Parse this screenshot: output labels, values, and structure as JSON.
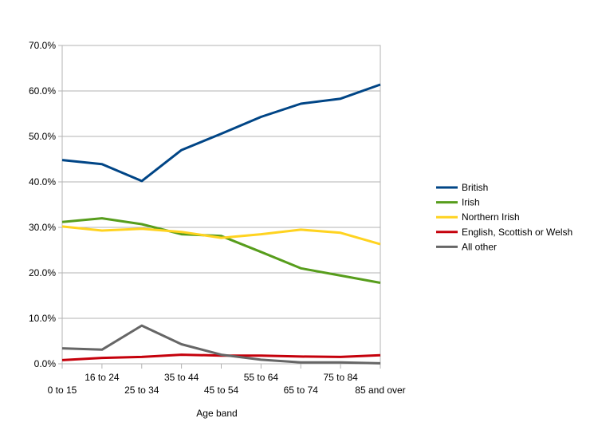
{
  "chart_data": {
    "type": "line",
    "title": "",
    "xlabel": "Age band",
    "ylabel": "",
    "ylim": [
      0,
      70
    ],
    "yticks": [
      "0.0%",
      "10.0%",
      "20.0%",
      "30.0%",
      "40.0%",
      "50.0%",
      "60.0%",
      "70.0%"
    ],
    "categories": [
      "0 to 15",
      "16 to 24",
      "25 to 34",
      "35 to 44",
      "45 to 54",
      "55 to 64",
      "65 to 74",
      "75 to 84",
      "85 and over"
    ],
    "legend_position": "right",
    "series": [
      {
        "name": "British",
        "color": "#004586",
        "values": [
          44.8,
          43.9,
          40.2,
          47.0,
          50.6,
          54.3,
          57.2,
          58.3,
          61.4
        ]
      },
      {
        "name": "Irish",
        "color": "#579d1c",
        "values": [
          31.2,
          32.0,
          30.7,
          28.5,
          28.1,
          24.6,
          21.0,
          19.4,
          17.8
        ]
      },
      {
        "name": "Northern Irish",
        "color": "#ffd320",
        "values": [
          30.2,
          29.3,
          29.7,
          29.0,
          27.7,
          28.5,
          29.5,
          28.8,
          26.3
        ]
      },
      {
        "name": "English, Scottish or Welsh",
        "color": "#c5000b",
        "values": [
          0.8,
          1.3,
          1.5,
          2.0,
          1.8,
          1.8,
          1.6,
          1.5,
          1.9
        ]
      },
      {
        "name": "All other",
        "color": "#666666",
        "values": [
          3.4,
          3.1,
          8.4,
          4.3,
          2.0,
          0.9,
          0.3,
          0.3,
          0.1
        ]
      }
    ]
  }
}
